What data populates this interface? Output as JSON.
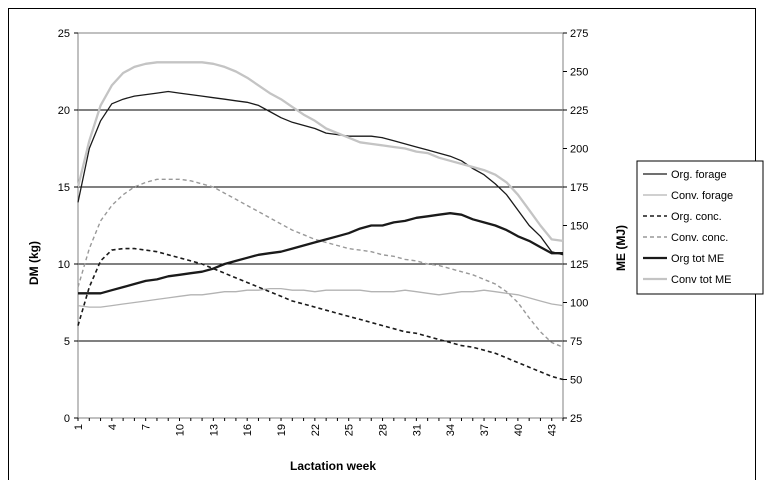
{
  "chart_data": {
    "type": "line",
    "xlabel": "Lactation week",
    "ylabel": "DM (kg)",
    "y2label": "ME (MJ)",
    "ylim": [
      0,
      25
    ],
    "y2lim": [
      25,
      275
    ],
    "yticks": [
      0,
      5,
      10,
      15,
      20,
      25
    ],
    "y2ticks": [
      25,
      50,
      75,
      100,
      125,
      150,
      175,
      200,
      225,
      250,
      275
    ],
    "xlim": [
      1,
      44
    ],
    "xticks": [
      1,
      4,
      7,
      10,
      13,
      16,
      19,
      22,
      25,
      28,
      31,
      34,
      37,
      40,
      43
    ],
    "grid": "horizontal",
    "legend_position": "right",
    "x": [
      1,
      2,
      3,
      4,
      5,
      6,
      7,
      8,
      9,
      10,
      11,
      12,
      13,
      14,
      15,
      16,
      17,
      18,
      19,
      20,
      21,
      22,
      23,
      24,
      25,
      26,
      27,
      28,
      29,
      30,
      31,
      32,
      33,
      34,
      35,
      36,
      37,
      38,
      39,
      40,
      41,
      42,
      43,
      44
    ],
    "series": [
      {
        "name": "Org. forage",
        "axis": "left",
        "color": "#1a1a1a",
        "dash": "solid",
        "width": 1.3,
        "values": [
          14,
          17.5,
          19.3,
          20.4,
          20.7,
          20.9,
          21.0,
          21.1,
          21.2,
          21.1,
          21.0,
          20.9,
          20.8,
          20.7,
          20.6,
          20.5,
          20.3,
          19.9,
          19.5,
          19.2,
          19.0,
          18.8,
          18.5,
          18.4,
          18.3,
          18.3,
          18.3,
          18.2,
          18.0,
          17.8,
          17.6,
          17.4,
          17.2,
          17.0,
          16.7,
          16.2,
          15.8,
          15.2,
          14.5,
          13.5,
          12.5,
          11.8,
          10.8,
          10.6
        ]
      },
      {
        "name": "Conv. forage",
        "axis": "left",
        "color": "#b3b3b3",
        "dash": "solid",
        "width": 1.3,
        "values": [
          7.3,
          7.2,
          7.2,
          7.3,
          7.4,
          7.5,
          7.6,
          7.7,
          7.8,
          7.9,
          8.0,
          8.0,
          8.1,
          8.2,
          8.2,
          8.3,
          8.3,
          8.4,
          8.4,
          8.3,
          8.3,
          8.2,
          8.3,
          8.3,
          8.3,
          8.3,
          8.2,
          8.2,
          8.2,
          8.3,
          8.2,
          8.1,
          8.0,
          8.1,
          8.2,
          8.2,
          8.3,
          8.2,
          8.1,
          8.0,
          7.8,
          7.6,
          7.4,
          7.3
        ]
      },
      {
        "name": "Org. conc.",
        "axis": "left",
        "color": "#1a1a1a",
        "dash": "4,3",
        "width": 1.6,
        "values": [
          6.0,
          8.5,
          10.2,
          10.9,
          11.0,
          11.0,
          10.9,
          10.8,
          10.6,
          10.4,
          10.2,
          10.0,
          9.7,
          9.4,
          9.1,
          8.8,
          8.5,
          8.2,
          7.9,
          7.6,
          7.4,
          7.2,
          7.0,
          6.8,
          6.6,
          6.4,
          6.2,
          6.0,
          5.8,
          5.6,
          5.5,
          5.3,
          5.1,
          4.9,
          4.7,
          4.6,
          4.4,
          4.2,
          3.9,
          3.6,
          3.3,
          3.0,
          2.7,
          2.5
        ]
      },
      {
        "name": "Conv. conc.",
        "axis": "left",
        "color": "#999999",
        "dash": "4,3",
        "width": 1.4,
        "values": [
          8.5,
          11.0,
          12.8,
          13.8,
          14.5,
          15.0,
          15.3,
          15.5,
          15.5,
          15.5,
          15.4,
          15.2,
          15.0,
          14.6,
          14.2,
          13.8,
          13.4,
          13.0,
          12.6,
          12.2,
          11.9,
          11.6,
          11.4,
          11.2,
          11.0,
          10.9,
          10.8,
          10.6,
          10.5,
          10.3,
          10.2,
          10.0,
          9.9,
          9.7,
          9.5,
          9.3,
          9.0,
          8.7,
          8.2,
          7.5,
          6.5,
          5.6,
          4.9,
          4.6
        ]
      },
      {
        "name": "Org tot ME",
        "axis": "right",
        "color": "#1a1a1a",
        "dash": "solid",
        "width": 2.3,
        "values": [
          106,
          106,
          106,
          108,
          110,
          112,
          114,
          115,
          117,
          118,
          119,
          120,
          122,
          125,
          127,
          129,
          131,
          132,
          133,
          135,
          137,
          139,
          141,
          143,
          145,
          148,
          150,
          150,
          152,
          153,
          155,
          156,
          157,
          158,
          157,
          154,
          152,
          150,
          147,
          143,
          140,
          136,
          132,
          132
        ]
      },
      {
        "name": "Conv tot ME",
        "axis": "right",
        "color": "#c4c4c4",
        "dash": "solid",
        "width": 2.3,
        "values": [
          175,
          205,
          228,
          241,
          249,
          253,
          255,
          256,
          256,
          256,
          256,
          256,
          255,
          253,
          250,
          246,
          241,
          236,
          232,
          227,
          222,
          218,
          213,
          210,
          207,
          204,
          203,
          202,
          201,
          200,
          198,
          197,
          194,
          192,
          190,
          188,
          186,
          183,
          178,
          170,
          160,
          150,
          141,
          140
        ]
      }
    ]
  }
}
